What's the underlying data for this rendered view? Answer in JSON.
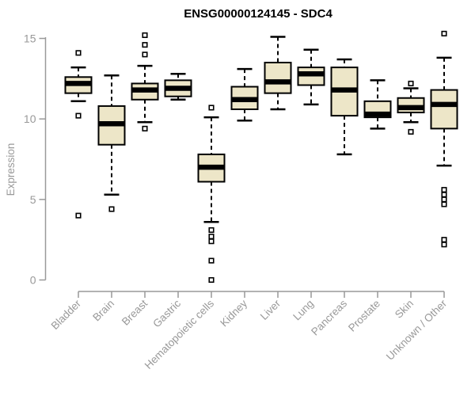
{
  "chart_data": {
    "type": "box",
    "title": "ENSG00000124145 - SDC4",
    "ylabel": "Expression",
    "xlabel": "",
    "yticks": [
      0,
      5,
      10,
      15
    ],
    "ylim": [
      0,
      15.3
    ],
    "grid": false,
    "legend": "none",
    "colors": {
      "box_fill": "#EDE6C8",
      "box_border": "#000000",
      "median": "#000000",
      "axis": "#999999",
      "tick_text": "#999999",
      "title_text": "#000000",
      "background": "#ffffff"
    },
    "categories": [
      "Bladder",
      "Brain",
      "Breast",
      "Gastric",
      "Hematopoietic cells",
      "Kidney",
      "Liver",
      "Lung",
      "Pancreas",
      "Prostate",
      "Skin",
      "Unknown / Other"
    ],
    "boxes": [
      {
        "label": "Bladder",
        "whisker_low": 11.1,
        "q1": 11.6,
        "median": 12.2,
        "q3": 12.6,
        "whisker_high": 13.2,
        "outliers": [
          14.1,
          10.2,
          4.0
        ]
      },
      {
        "label": "Brain",
        "whisker_low": 5.3,
        "q1": 8.4,
        "median": 9.7,
        "q3": 10.8,
        "whisker_high": 12.7,
        "outliers": [
          4.4
        ]
      },
      {
        "label": "Breast",
        "whisker_low": 9.8,
        "q1": 11.2,
        "median": 11.8,
        "q3": 12.2,
        "whisker_high": 13.3,
        "outliers": [
          15.2,
          14.6,
          14.0,
          9.4
        ]
      },
      {
        "label": "Gastric",
        "whisker_low": 11.2,
        "q1": 11.4,
        "median": 11.9,
        "q3": 12.4,
        "whisker_high": 12.8,
        "outliers": []
      },
      {
        "label": "Hematopoietic cells",
        "whisker_low": 3.6,
        "q1": 6.1,
        "median": 7.0,
        "q3": 7.8,
        "whisker_high": 10.1,
        "outliers": [
          10.7,
          3.1,
          2.7,
          2.4,
          1.2,
          0.0
        ]
      },
      {
        "label": "Kidney",
        "whisker_low": 9.9,
        "q1": 10.6,
        "median": 11.2,
        "q3": 12.0,
        "whisker_high": 13.1,
        "outliers": []
      },
      {
        "label": "Liver",
        "whisker_low": 10.6,
        "q1": 11.6,
        "median": 12.3,
        "q3": 13.5,
        "whisker_high": 15.1,
        "outliers": []
      },
      {
        "label": "Lung",
        "whisker_low": 10.9,
        "q1": 12.1,
        "median": 12.8,
        "q3": 13.2,
        "whisker_high": 14.3,
        "outliers": []
      },
      {
        "label": "Pancreas",
        "whisker_low": 7.8,
        "q1": 10.2,
        "median": 11.8,
        "q3": 13.2,
        "whisker_high": 13.7,
        "outliers": []
      },
      {
        "label": "Prostate",
        "whisker_low": 9.4,
        "q1": 10.1,
        "median": 10.3,
        "q3": 11.1,
        "whisker_high": 12.4,
        "outliers": []
      },
      {
        "label": "Skin",
        "whisker_low": 9.8,
        "q1": 10.4,
        "median": 10.7,
        "q3": 11.3,
        "whisker_high": 11.9,
        "outliers": [
          12.2,
          9.2
        ]
      },
      {
        "label": "Unknown / Other",
        "whisker_low": 7.1,
        "q1": 9.4,
        "median": 10.9,
        "q3": 11.8,
        "whisker_high": 13.8,
        "outliers": [
          15.3,
          5.6,
          5.3,
          5.0,
          4.7,
          2.5,
          2.2
        ]
      }
    ]
  }
}
